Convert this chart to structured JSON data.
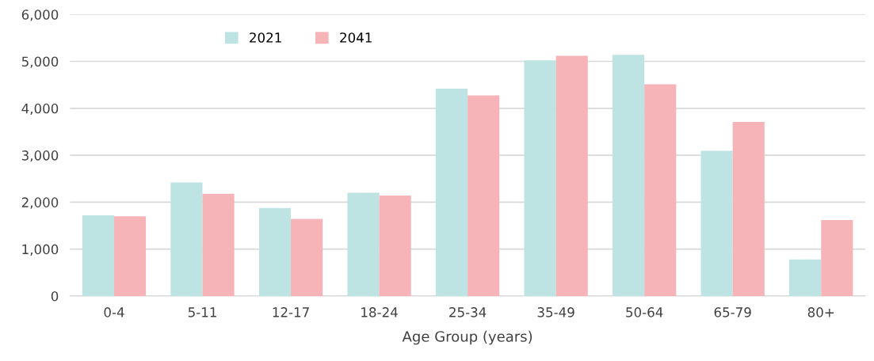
{
  "chart_data": {
    "type": "bar",
    "xlabel": "Age Group (years)",
    "categories": [
      "0-4",
      "5-11",
      "12-17",
      "18-24",
      "25-34",
      "35-49",
      "50-64",
      "65-79",
      "80+"
    ],
    "series": [
      {
        "name": "2021",
        "color": "#bde3e3",
        "values": [
          1720,
          2420,
          1875,
          2200,
          4420,
          5020,
          5140,
          3095,
          780
        ]
      },
      {
        "name": "2041",
        "color": "#f6b4b9",
        "values": [
          1700,
          2180,
          1645,
          2140,
          4275,
          5120,
          4510,
          3710,
          1620
        ]
      }
    ],
    "ylim": [
      0,
      6000
    ],
    "yticks": [
      {
        "value": 0,
        "label": "0"
      },
      {
        "value": 1000,
        "label": "1,000"
      },
      {
        "value": 2000,
        "label": "2,000"
      },
      {
        "value": 3000,
        "label": "3,000"
      },
      {
        "value": 4000,
        "label": "4,000"
      },
      {
        "value": 5000,
        "label": "5,000"
      },
      {
        "value": 6000,
        "label": "6,000"
      }
    ],
    "grid": "y",
    "legend": "top left"
  }
}
